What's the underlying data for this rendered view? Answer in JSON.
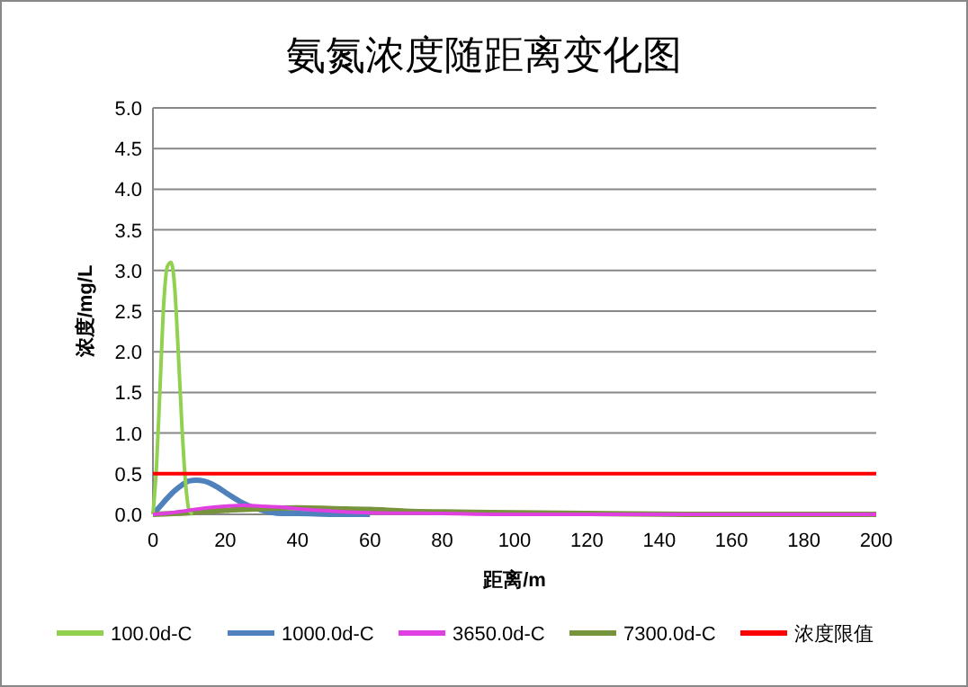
{
  "chart_data": {
    "type": "line",
    "title": "氨氮浓度随距离变化图",
    "xlabel": "距离/m",
    "ylabel": "浓度/mg/L",
    "xlim": [
      0,
      200
    ],
    "xticks": [
      0,
      20,
      40,
      60,
      80,
      100,
      120,
      140,
      160,
      180,
      200
    ],
    "ylim": [
      0,
      5
    ],
    "yticks": [
      {
        "value": 0,
        "label": "0.0"
      },
      {
        "value": 0.5,
        "label": "0.5"
      },
      {
        "value": 1,
        "label": "1.0"
      },
      {
        "value": 1.5,
        "label": "1.5"
      },
      {
        "value": 2,
        "label": "2.0"
      },
      {
        "value": 2.5,
        "label": "2.5"
      },
      {
        "value": 3,
        "label": "3.0"
      },
      {
        "value": 3.5,
        "label": "3.5"
      },
      {
        "value": 4,
        "label": "4.0"
      },
      {
        "value": 4.5,
        "label": "4.5"
      },
      {
        "value": 5,
        "label": "5.0"
      }
    ],
    "grid": "y",
    "legend": "bottom",
    "series": [
      {
        "name": "100.0d-C",
        "color": "#92d050",
        "x": [
          0,
          1,
          2,
          3,
          4,
          5,
          6,
          7,
          8,
          9,
          10,
          11
        ],
        "values": [
          0,
          0.6,
          1.6,
          2.6,
          3.05,
          3.1,
          2.8,
          2.0,
          1.1,
          0.4,
          0.05,
          0
        ]
      },
      {
        "name": "1000.0d-C",
        "color": "#4f81bd",
        "x": [
          0,
          2,
          4,
          6,
          8,
          10,
          12,
          14,
          16,
          18,
          20,
          24,
          28,
          32,
          36,
          40,
          50,
          60
        ],
        "values": [
          0,
          0.1,
          0.2,
          0.29,
          0.36,
          0.41,
          0.42,
          0.41,
          0.38,
          0.33,
          0.27,
          0.16,
          0.08,
          0.03,
          0.01,
          0.01,
          0,
          0
        ]
      },
      {
        "name": "3650.0d-C",
        "color": "#e040e0",
        "x": [
          0,
          5,
          10,
          15,
          20,
          25,
          30,
          35,
          40,
          50,
          60,
          80,
          100,
          200
        ],
        "values": [
          0,
          0.02,
          0.05,
          0.08,
          0.1,
          0.11,
          0.1,
          0.09,
          0.07,
          0.04,
          0.02,
          0.01,
          0,
          0
        ]
      },
      {
        "name": "7300.0d-C",
        "color": "#77933c",
        "x": [
          0,
          10,
          20,
          30,
          40,
          50,
          60,
          70,
          80,
          100,
          120,
          150,
          200
        ],
        "values": [
          0,
          0.02,
          0.05,
          0.07,
          0.08,
          0.07,
          0.06,
          0.04,
          0.03,
          0.02,
          0.01,
          0,
          0
        ]
      },
      {
        "name": "浓度限值",
        "color": "#ff0000",
        "x": [
          0,
          200
        ],
        "values": [
          0.5,
          0.5
        ]
      }
    ]
  }
}
